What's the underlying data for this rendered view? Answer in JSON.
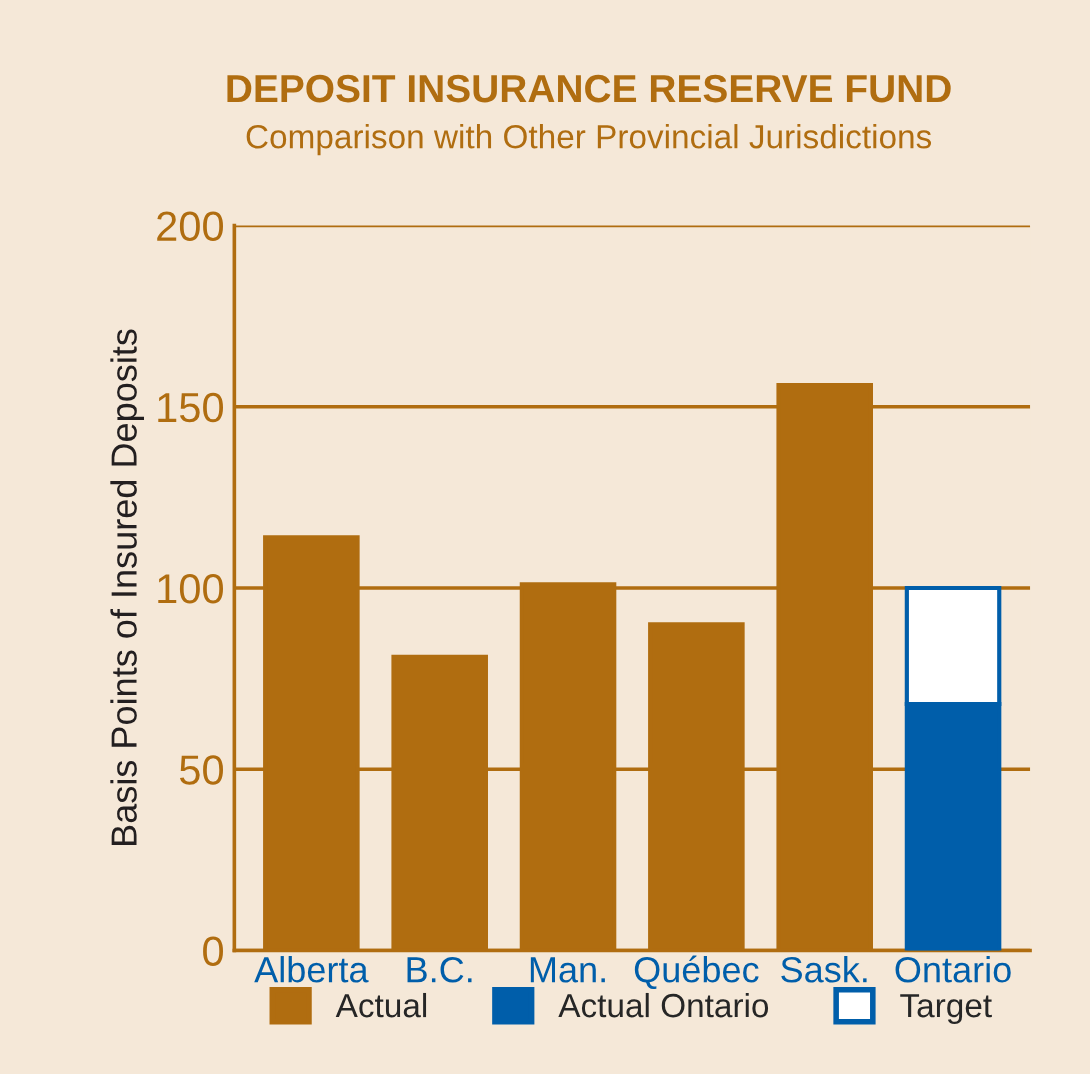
{
  "chart_data": {
    "type": "bar",
    "title": "DEPOSIT INSURANCE RESERVE FUND",
    "subtitle": "Comparison with Other Provincial Jurisdictions",
    "ylabel": "Basis Points of Insured Deposits",
    "categories": [
      "Alberta",
      "B.C.",
      "Man.",
      "Québec",
      "Sask.",
      "Ontario"
    ],
    "stacked": true,
    "series": [
      {
        "name": "Actual",
        "color": "#b06d10",
        "values": [
          114,
          81,
          101,
          90,
          156,
          null
        ]
      },
      {
        "name": "Actual Ontario",
        "color": "#005eaa",
        "values": [
          null,
          null,
          null,
          null,
          null,
          68
        ]
      },
      {
        "name": "Target",
        "color": "#ffffff",
        "values": [
          null,
          null,
          null,
          null,
          null,
          32
        ]
      }
    ],
    "ylim": [
      0,
      200
    ],
    "yticks": [
      0,
      50,
      100,
      150,
      200
    ],
    "grid": "y",
    "legend": "bottom"
  }
}
